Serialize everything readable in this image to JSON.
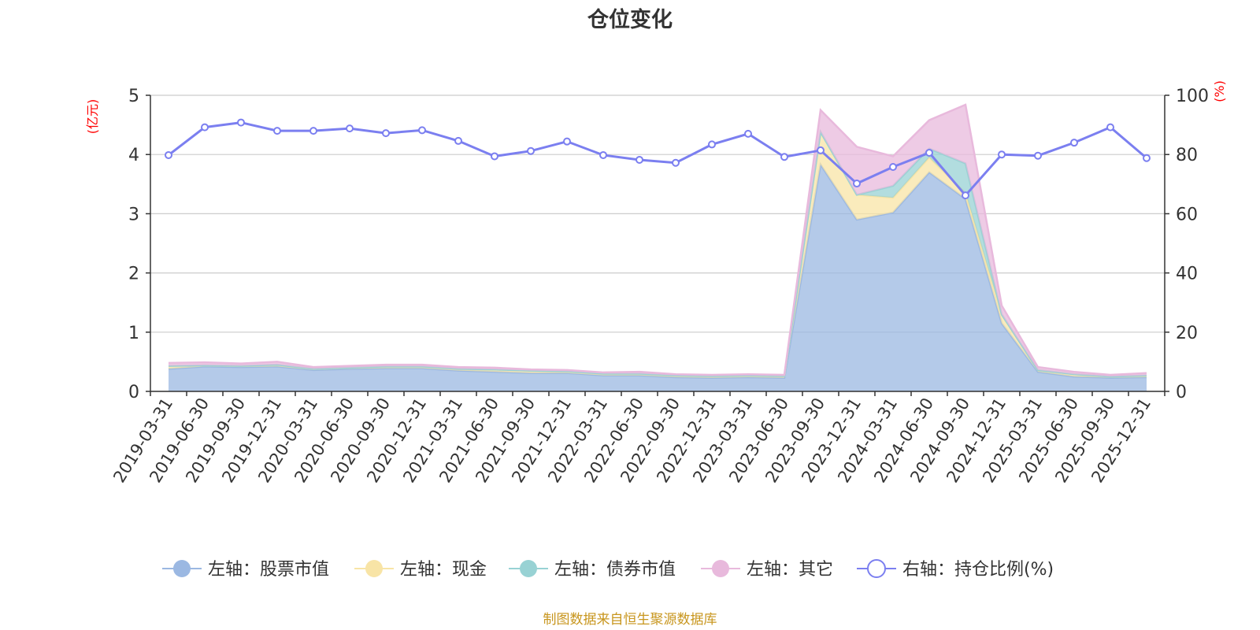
{
  "chart_data": {
    "type": "area",
    "title": "仓位变化",
    "left_axis_unit": "(亿元)",
    "right_axis_unit": "(%)",
    "left_ylim": [
      0,
      5
    ],
    "left_ticks": [
      "0",
      "1",
      "2",
      "3",
      "4",
      "5"
    ],
    "right_ylim": [
      0,
      100
    ],
    "right_ticks": [
      "0",
      "20",
      "40",
      "60",
      "80",
      "100"
    ],
    "grid": true,
    "legend_position": "bottom",
    "categories": [
      "2019-03-31",
      "2019-06-30",
      "2019-09-30",
      "2019-12-31",
      "2020-03-31",
      "2020-06-30",
      "2020-09-30",
      "2020-12-31",
      "2021-03-31",
      "2021-06-30",
      "2021-09-30",
      "2021-12-31",
      "2022-03-31",
      "2022-06-30",
      "2022-09-30",
      "2022-12-31",
      "2023-03-31",
      "2023-06-30",
      "2023-09-30",
      "2023-12-31",
      "2024-03-31",
      "2024-06-30",
      "2024-09-30",
      "2024-12-31",
      "2025-03-31",
      "2025-06-30",
      "2025-09-30",
      "2025-12-31"
    ],
    "stacked_series": [
      {
        "name": "左轴：股票市值",
        "axis": "left",
        "color": "#9bb8e2",
        "values": [
          0.38,
          0.42,
          0.41,
          0.42,
          0.36,
          0.38,
          0.39,
          0.39,
          0.35,
          0.33,
          0.31,
          0.31,
          0.27,
          0.27,
          0.24,
          0.23,
          0.24,
          0.23,
          3.83,
          2.9,
          3.02,
          3.7,
          3.25,
          1.15,
          0.33,
          0.25,
          0.23,
          0.24
        ]
      },
      {
        "name": "左轴：现金",
        "axis": "left",
        "color": "#f8e4a6",
        "values": [
          0.05,
          0.02,
          0.02,
          0.03,
          0.02,
          0.02,
          0.03,
          0.03,
          0.03,
          0.04,
          0.04,
          0.03,
          0.03,
          0.03,
          0.03,
          0.03,
          0.03,
          0.03,
          0.55,
          0.42,
          0.25,
          0.25,
          0.1,
          0.15,
          0.03,
          0.04,
          0.02,
          0.03
        ]
      },
      {
        "name": "左轴：债券市值",
        "axis": "left",
        "color": "#98d2d4",
        "values": [
          0,
          0,
          0,
          0,
          0,
          0,
          0,
          0,
          0,
          0,
          0,
          0,
          0,
          0,
          0,
          0,
          0,
          0,
          0,
          0,
          0.2,
          0.15,
          0.5,
          0,
          0,
          0,
          0,
          0
        ]
      },
      {
        "name": "左轴：其它",
        "axis": "left",
        "color": "#e8b9dc",
        "values": [
          0.05,
          0.05,
          0.04,
          0.05,
          0.03,
          0.03,
          0.03,
          0.03,
          0.03,
          0.03,
          0.02,
          0.02,
          0.02,
          0.03,
          0.02,
          0.02,
          0.02,
          0.02,
          0.37,
          0.81,
          0.5,
          0.48,
          0.99,
          0.15,
          0.05,
          0.04,
          0.03,
          0.04
        ]
      }
    ],
    "line_series": {
      "name": "右轴：持仓比例(%)",
      "axis": "right",
      "color": "#7b7ff0",
      "values": [
        79.8,
        89.2,
        90.8,
        88,
        88,
        88.8,
        87.2,
        88.2,
        84.6,
        79.4,
        81.2,
        84.4,
        79.8,
        78.2,
        77.2,
        83.4,
        87,
        79.2,
        81.4,
        70.2,
        75.8,
        80.6,
        66.2,
        80,
        79.6,
        84,
        89.2,
        78.8
      ]
    },
    "source": "制图数据来自恒生聚源数据库"
  }
}
